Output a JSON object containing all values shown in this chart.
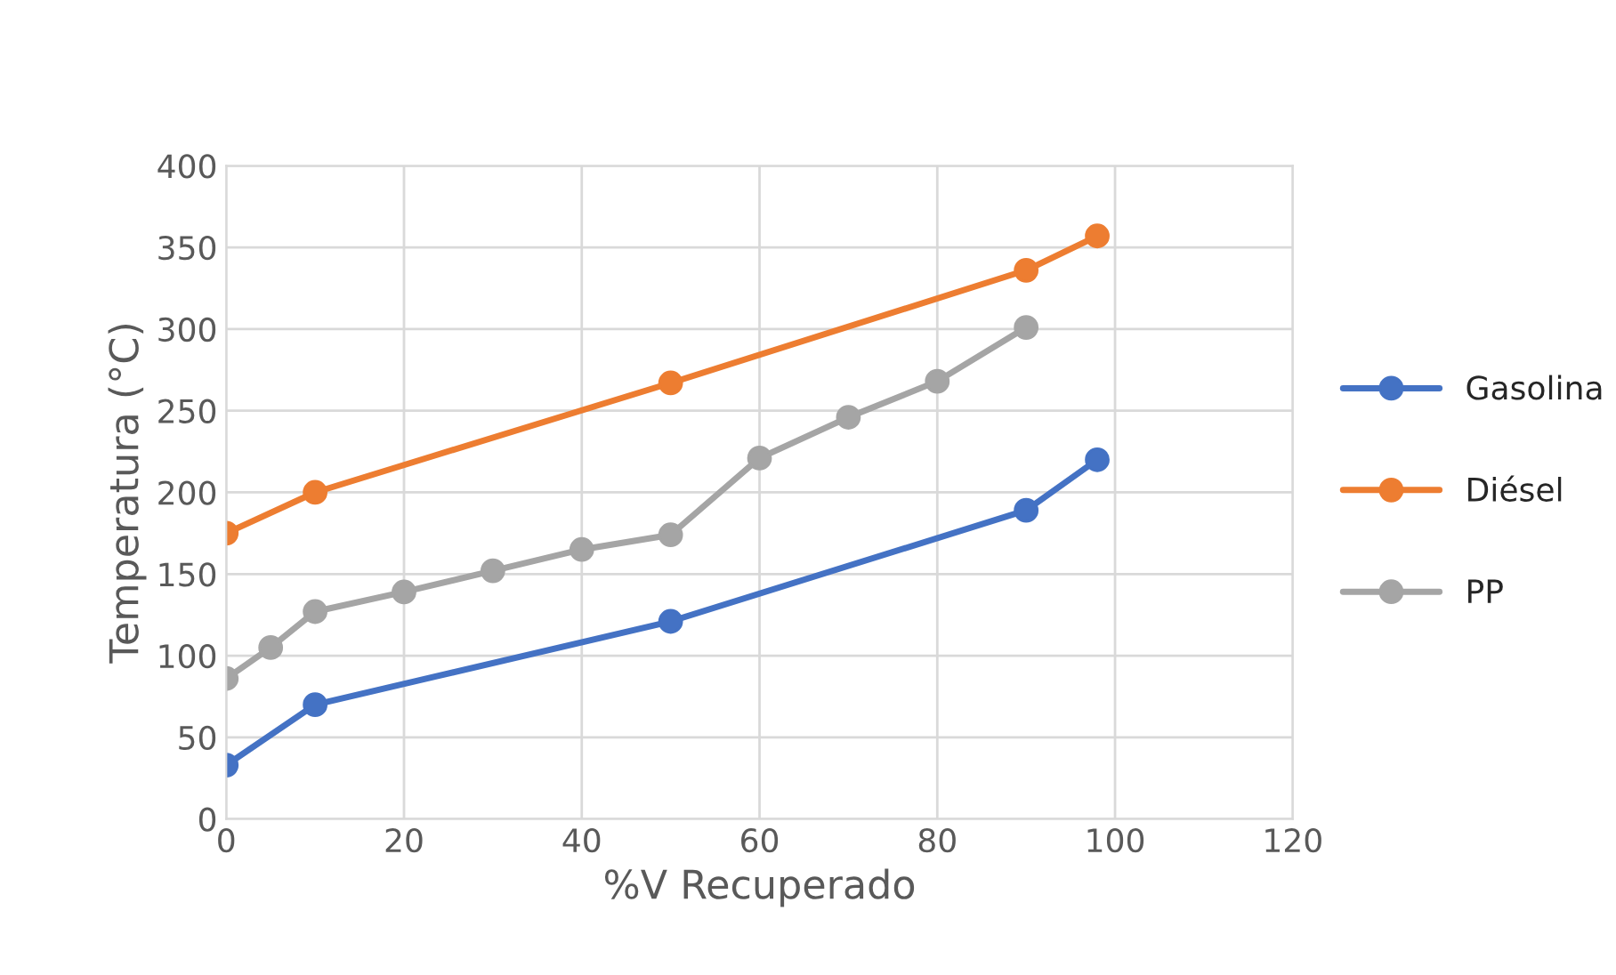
{
  "chart_data": {
    "type": "line",
    "xlabel": "%V Recuperado",
    "ylabel": "Temperatura (°C)",
    "xlim": [
      0,
      120
    ],
    "xticks": [
      0,
      20,
      40,
      60,
      80,
      100,
      120
    ],
    "ylim": [
      0,
      400
    ],
    "yticks": [
      0,
      50,
      100,
      150,
      200,
      250,
      300,
      350,
      400
    ],
    "grid": true,
    "legend": "right",
    "marker": "circle",
    "line_style": "solid",
    "series": [
      {
        "name": "Gasolina",
        "color": "#4472c4",
        "x": [
          0,
          10,
          50,
          90,
          98
        ],
        "values": [
          33,
          70,
          121,
          189,
          220
        ]
      },
      {
        "name": "Diésel",
        "color": "#ed7d31",
        "x": [
          0,
          10,
          50,
          90,
          98
        ],
        "values": [
          175,
          200,
          267,
          336,
          357
        ]
      },
      {
        "name": "PP",
        "color": "#a5a5a5",
        "x": [
          0,
          5,
          10,
          20,
          30,
          40,
          50,
          60,
          70,
          80,
          90
        ],
        "values": [
          86,
          105,
          127,
          139,
          152,
          165,
          174,
          221,
          246,
          268,
          301
        ]
      }
    ]
  }
}
